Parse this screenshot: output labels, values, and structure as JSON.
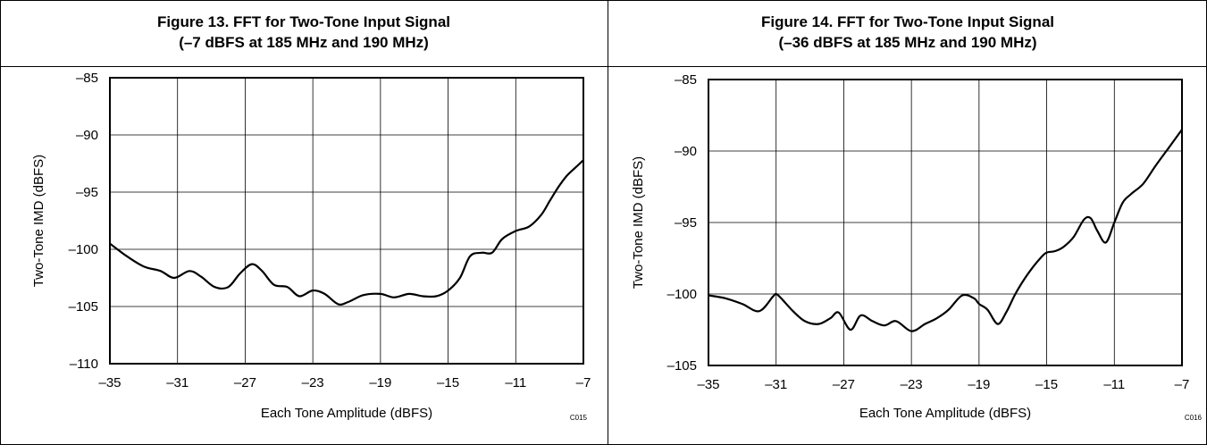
{
  "figures": [
    {
      "title_line1": "Figure 13. FFT for Two-Tone Input Signal",
      "title_line2": "(–7 dBFS at 185 MHz and 190 MHz)"
    },
    {
      "title_line1": "Figure 14. FFT for Two-Tone Input Signal",
      "title_line2": "(–36 dBFS at 185 MHz and 190 MHz)"
    }
  ],
  "chart_data": [
    {
      "type": "line",
      "title": "",
      "xlabel": "Each Tone Amplitude (dBFS)",
      "ylabel": "Two-Tone IMD (dBFS)",
      "code": "C015",
      "xlim": [
        -35,
        -7
      ],
      "ylim": [
        -110,
        -85
      ],
      "xticks": [
        -35,
        -31,
        -27,
        -23,
        -19,
        -15,
        -11,
        -7
      ],
      "yticks": [
        -85,
        -90,
        -95,
        -100,
        -105,
        -110
      ],
      "xtick_labels": [
        "–35",
        "–31",
        "–27",
        "–23",
        "–19",
        "–15",
        "–11",
        "–7"
      ],
      "ytick_labels": [
        "–85",
        "–90",
        "–95",
        "–100",
        "–105",
        "–110"
      ],
      "grid": true,
      "series": [
        {
          "x": [
            -35,
            -34,
            -33,
            -32,
            -31.2,
            -30.3,
            -29.6,
            -28.8,
            -28,
            -27.3,
            -26.6,
            -26,
            -25.3,
            -24.5,
            -23.8,
            -23,
            -22.3,
            -21.5,
            -20.9,
            -20,
            -19,
            -18.2,
            -17.3,
            -16.5,
            -15.7,
            -15,
            -14.3,
            -13.7,
            -13,
            -12.4,
            -11.8,
            -11,
            -10.2,
            -9.5,
            -9,
            -8.5,
            -8,
            -7.5,
            -7
          ],
          "y": [
            -99.5,
            -100.6,
            -101.5,
            -101.9,
            -102.5,
            -101.9,
            -102.4,
            -103.3,
            -103.3,
            -102.1,
            -101.3,
            -101.9,
            -103.1,
            -103.3,
            -104.1,
            -103.6,
            -103.9,
            -104.8,
            -104.6,
            -104.0,
            -103.9,
            -104.2,
            -103.9,
            -104.1,
            -104.1,
            -103.6,
            -102.5,
            -100.6,
            -100.3,
            -100.3,
            -99.1,
            -98.4,
            -98.0,
            -97.0,
            -95.8,
            -94.6,
            -93.6,
            -92.9,
            -92.2
          ]
        }
      ]
    },
    {
      "type": "line",
      "title": "",
      "xlabel": "Each Tone Amplitude (dBFS)",
      "ylabel": "Two-Tone IMD (dBFS)",
      "code": "C016",
      "xlim": [
        -35,
        -7
      ],
      "ylim": [
        -105,
        -85
      ],
      "xticks": [
        -35,
        -31,
        -27,
        -23,
        -19,
        -15,
        -11,
        -7
      ],
      "yticks": [
        -85,
        -90,
        -95,
        -100,
        -105
      ],
      "xtick_labels": [
        "–35",
        "–31",
        "–27",
        "–23",
        "–19",
        "–15",
        "–11",
        "–7"
      ],
      "ytick_labels": [
        "–85",
        "–90",
        "–95",
        "–100",
        "–105"
      ],
      "grid": true,
      "series": [
        {
          "x": [
            -35,
            -34,
            -33,
            -32,
            -31.2,
            -31,
            -30.7,
            -30,
            -29.3,
            -28.5,
            -27.8,
            -27.3,
            -26.6,
            -26,
            -25.3,
            -24.6,
            -23.9,
            -23,
            -22.2,
            -21.5,
            -20.8,
            -20,
            -19.3,
            -19,
            -18.5,
            -17.9,
            -17.4,
            -16.9,
            -16.4,
            -15.8,
            -15.3,
            -15,
            -14.5,
            -14,
            -13.4,
            -12.8,
            -12.4,
            -12,
            -11.5,
            -11,
            -10.5,
            -10,
            -9.3,
            -8.6,
            -7.8,
            -7
          ],
          "y": [
            -100.1,
            -100.3,
            -100.7,
            -101.2,
            -100.2,
            -100.0,
            -100.3,
            -101.2,
            -101.9,
            -102.1,
            -101.7,
            -101.3,
            -102.5,
            -101.5,
            -101.9,
            -102.2,
            -101.9,
            -102.6,
            -102.1,
            -101.7,
            -101.1,
            -100.1,
            -100.3,
            -100.7,
            -101.1,
            -102.1,
            -101.3,
            -100.1,
            -99.1,
            -98.1,
            -97.4,
            -97.1,
            -97.0,
            -96.7,
            -96.0,
            -94.8,
            -94.7,
            -95.6,
            -96.4,
            -95.0,
            -93.6,
            -93.0,
            -92.3,
            -91.1,
            -89.8,
            -88.5
          ]
        }
      ]
    }
  ]
}
